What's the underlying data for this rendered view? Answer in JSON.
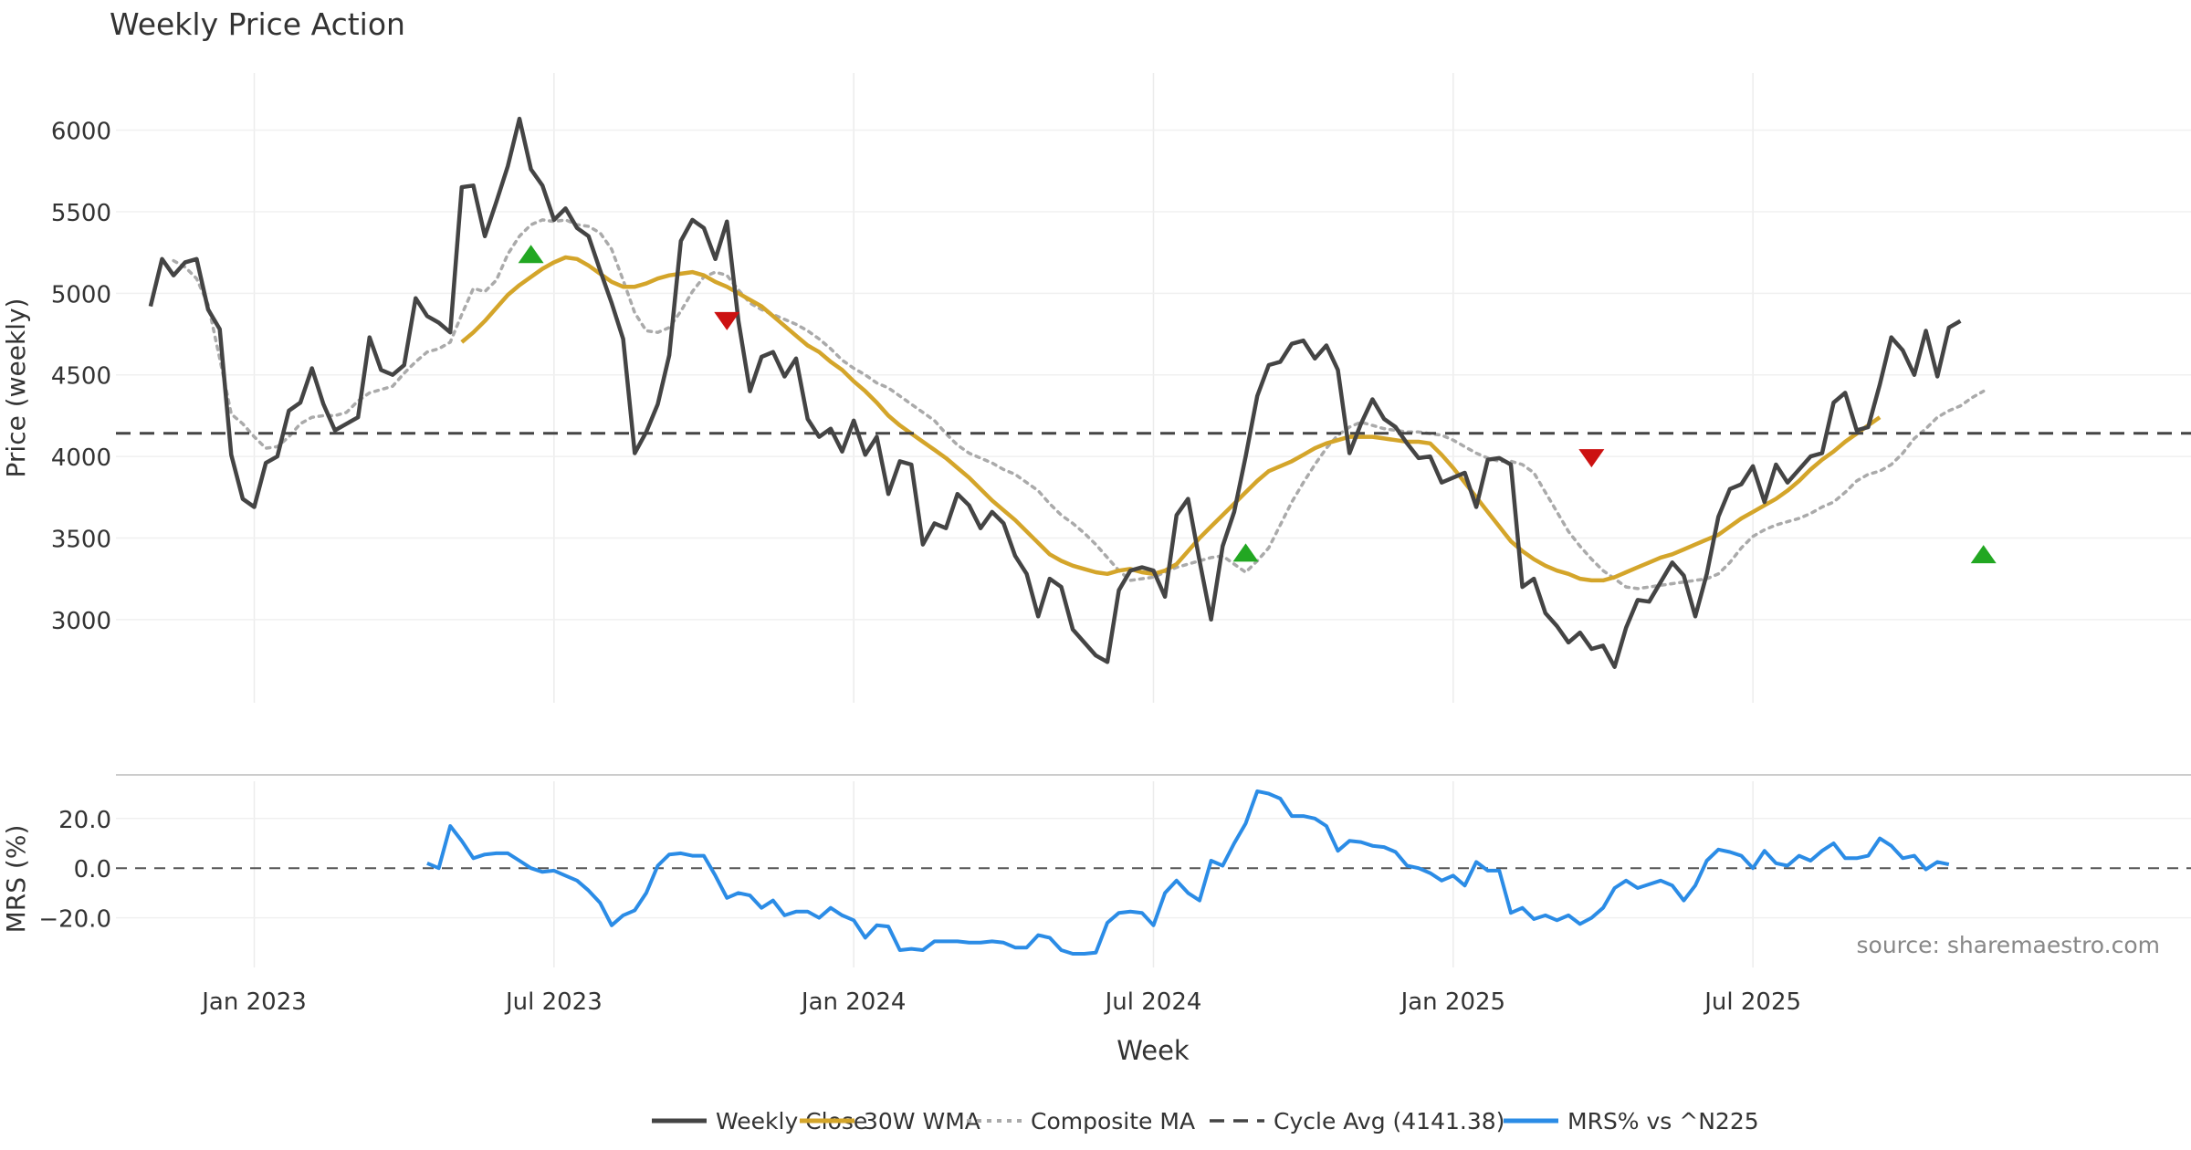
{
  "chart_data": {
    "title": "Weekly Price Action",
    "source": "source: sharemaestro.com",
    "x_label": "Week",
    "x_ticks": [
      {
        "week": 12,
        "label": "Jan 2023"
      },
      {
        "week": 38,
        "label": "Jul 2023"
      },
      {
        "week": 64,
        "label": "Jan 2024"
      },
      {
        "week": 90,
        "label": "Jul 2024"
      },
      {
        "week": 116,
        "label": "Jan 2025"
      },
      {
        "week": 142,
        "label": "Jul 2025"
      }
    ],
    "price_panel": {
      "type": "line",
      "ylabel": "Price (weekly)",
      "ylim": [
        2490,
        6350
      ],
      "yticks": [
        3000,
        3500,
        4000,
        4500,
        5000,
        5500,
        6000
      ],
      "series": [
        {
          "name": "Weekly Close",
          "color": "#444444",
          "style": "solid",
          "start_week": 3,
          "values": [
            4920,
            5210,
            5110,
            5190,
            5210,
            4900,
            4780,
            4010,
            3740,
            3690,
            3960,
            4000,
            4280,
            4330,
            4540,
            4320,
            4160,
            4200,
            4240,
            4730,
            4530,
            4500,
            4560,
            4970,
            4860,
            4820,
            4760,
            5650,
            5660,
            5350,
            5560,
            5780,
            6070,
            5760,
            5660,
            5450,
            5520,
            5400,
            5350,
            5140,
            4940,
            4720,
            4020,
            4150,
            4320,
            4620,
            5320,
            5450,
            5400,
            5210,
            5440,
            4830,
            4400,
            4610,
            4640,
            4490,
            4600,
            4230,
            4120,
            4170,
            4030,
            4220,
            4010,
            4120,
            3770,
            3970,
            3950,
            3460,
            3590,
            3560,
            3770,
            3700,
            3560,
            3660,
            3590,
            3390,
            3280,
            3020,
            3250,
            3200,
            2940,
            2860,
            2780,
            2740,
            3180,
            3300,
            3320,
            3300,
            3140,
            3640,
            3740,
            3360,
            3000,
            3450,
            3660,
            4000,
            4370,
            4560,
            4580,
            4690,
            4710,
            4600,
            4680,
            4530,
            4020,
            4200,
            4350,
            4230,
            4180,
            4080,
            3990,
            4000,
            3840,
            3870,
            3900,
            3690,
            3980,
            3990,
            3950,
            3200,
            3250,
            3040,
            2960,
            2860,
            2920,
            2820,
            2840,
            2710,
            2950,
            3120,
            3110,
            3230,
            3350,
            3270,
            3020,
            3280,
            3630,
            3800,
            3830,
            3940,
            3720,
            3950,
            3840,
            3920,
            4000,
            4020,
            4330,
            4390,
            4160,
            4180,
            4440,
            4730,
            4650,
            4500,
            4770,
            4490,
            4790,
            4830
          ]
        },
        {
          "name": "30W WMA",
          "color": "#D4A52A",
          "style": "solid",
          "start_week": 30,
          "values": [
            4700,
            4760,
            4830,
            4910,
            4990,
            5050,
            5100,
            5150,
            5190,
            5220,
            5210,
            5170,
            5120,
            5070,
            5040,
            5040,
            5060,
            5090,
            5110,
            5120,
            5130,
            5110,
            5070,
            5040,
            5000,
            4960,
            4920,
            4860,
            4800,
            4740,
            4680,
            4640,
            4580,
            4530,
            4460,
            4400,
            4330,
            4250,
            4190,
            4140,
            4090,
            4040,
            3990,
            3930,
            3870,
            3800,
            3730,
            3670,
            3610,
            3540,
            3470,
            3400,
            3360,
            3330,
            3310,
            3290,
            3280,
            3300,
            3310,
            3290,
            3280,
            3300,
            3340,
            3420,
            3500,
            3570,
            3640,
            3710,
            3780,
            3850,
            3910,
            3940,
            3970,
            4010,
            4050,
            4080,
            4100,
            4120,
            4120,
            4120,
            4110,
            4100,
            4090,
            4090,
            4080,
            4010,
            3930,
            3840,
            3750,
            3660,
            3570,
            3480,
            3420,
            3370,
            3330,
            3300,
            3280,
            3250,
            3240,
            3240,
            3260,
            3290,
            3320,
            3350,
            3380,
            3400,
            3430,
            3460,
            3490,
            3520,
            3570,
            3620,
            3660,
            3700,
            3740,
            3790,
            3850,
            3920,
            3980,
            4030,
            4090,
            4140,
            4190,
            4240
          ]
        },
        {
          "name": "Composite MA",
          "color": "#AAAAAA",
          "style": "dotted",
          "start_week": 5,
          "values": [
            5200,
            5160,
            5090,
            4930,
            4600,
            4260,
            4200,
            4120,
            4050,
            4060,
            4120,
            4200,
            4240,
            4250,
            4250,
            4270,
            4340,
            4390,
            4410,
            4430,
            4510,
            4580,
            4640,
            4660,
            4700,
            4870,
            5030,
            5010,
            5080,
            5240,
            5350,
            5420,
            5450,
            5440,
            5450,
            5420,
            5410,
            5370,
            5270,
            5080,
            4880,
            4770,
            4760,
            4790,
            4890,
            5010,
            5100,
            5130,
            5110,
            5020,
            4940,
            4900,
            4870,
            4840,
            4810,
            4770,
            4720,
            4660,
            4590,
            4540,
            4500,
            4450,
            4420,
            4370,
            4320,
            4270,
            4220,
            4140,
            4070,
            4020,
            3990,
            3960,
            3920,
            3890,
            3840,
            3790,
            3710,
            3640,
            3590,
            3530,
            3460,
            3380,
            3300,
            3240,
            3250,
            3260,
            3290,
            3320,
            3340,
            3360,
            3380,
            3390,
            3340,
            3290,
            3360,
            3440,
            3580,
            3720,
            3840,
            3950,
            4050,
            4130,
            4180,
            4210,
            4190,
            4170,
            4160,
            4150,
            4150,
            4140,
            4130,
            4100,
            4060,
            4020,
            3990,
            3970,
            3970,
            3950,
            3900,
            3780,
            3660,
            3540,
            3450,
            3370,
            3300,
            3250,
            3200,
            3190,
            3200,
            3210,
            3220,
            3230,
            3240,
            3250,
            3280,
            3350,
            3440,
            3510,
            3550,
            3580,
            3600,
            3620,
            3650,
            3690,
            3720,
            3780,
            3850,
            3890,
            3910,
            3950,
            4020,
            4110,
            4170,
            4240,
            4280,
            4310,
            4360,
            4400
          ]
        },
        {
          "name": "Cycle Avg (4141.38)",
          "color": "#444444",
          "style": "dashed",
          "value": 4141.38
        }
      ],
      "signals": [
        {
          "type": "buy",
          "week": 36,
          "value": 5230,
          "color": "#22A722"
        },
        {
          "type": "sell",
          "week": 53,
          "value": 4840,
          "color": "#CC1111"
        },
        {
          "type": "buy",
          "week": 98,
          "value": 3400,
          "color": "#22A722"
        },
        {
          "type": "sell",
          "week": 128,
          "value": 4000,
          "color": "#CC1111"
        },
        {
          "type": "buy",
          "week": 162,
          "value": 3390,
          "color": "#22A722"
        }
      ]
    },
    "mrs_panel": {
      "type": "line",
      "ylabel": "MRS (%)",
      "ylim": [
        -40,
        35
      ],
      "yticks": [
        -20,
        0,
        20
      ],
      "ytick_labels": [
        "−20.0",
        "0.0",
        "20.0"
      ],
      "zero_line": true,
      "series": [
        {
          "name": "MRS% vs ^N225",
          "color": "#2B8CE6",
          "style": "solid",
          "start_week": 27,
          "values": [
            2,
            0,
            17,
            11,
            4,
            5.5,
            6,
            6,
            3,
            0,
            -1.5,
            -1,
            -3,
            -5,
            -9,
            -14,
            -23,
            -19,
            -17,
            -10,
            1,
            5.5,
            6,
            5,
            5,
            -3,
            -12,
            -10,
            -11,
            -16,
            -13,
            -19,
            -17.5,
            -17.5,
            -20,
            -16,
            -19,
            -21,
            -28,
            -23,
            -23.5,
            -33,
            -32.5,
            -33,
            -29.5,
            -29.5,
            -29.5,
            -30,
            -30,
            -29.5,
            -30,
            -32,
            -32,
            -27,
            -28,
            -33,
            -34.5,
            -34.5,
            -34,
            -22,
            -18,
            -17.5,
            -18,
            -23,
            -10,
            -5,
            -10,
            -13,
            3,
            1,
            10,
            18,
            31,
            30,
            28,
            21,
            21,
            20,
            17,
            7,
            11,
            10.5,
            9,
            8.5,
            6.5,
            1,
            0,
            -2,
            -5,
            -3,
            -7,
            2.5,
            -1,
            -1,
            -18,
            -16,
            -20.5,
            -19,
            -21,
            -19,
            -22.5,
            -20,
            -16,
            -8,
            -5,
            -8,
            -6.5,
            -5,
            -7,
            -13,
            -7,
            3,
            7.5,
            6.5,
            5,
            0,
            7,
            2,
            1,
            5,
            3,
            7,
            10,
            4,
            4,
            5,
            12,
            9,
            4,
            5,
            -0.5,
            2.5,
            1.5
          ]
        }
      ]
    },
    "legend": [
      {
        "label": "Weekly Close",
        "color": "#444444",
        "style": "solid"
      },
      {
        "label": "30W WMA",
        "color": "#D4A52A",
        "style": "solid"
      },
      {
        "label": "Composite MA",
        "color": "#AAAAAA",
        "style": "dotted"
      },
      {
        "label": "Cycle Avg (4141.38)",
        "color": "#444444",
        "style": "dashed"
      },
      {
        "label": "MRS% vs ^N225",
        "color": "#2B8CE6",
        "style": "solid"
      }
    ]
  }
}
